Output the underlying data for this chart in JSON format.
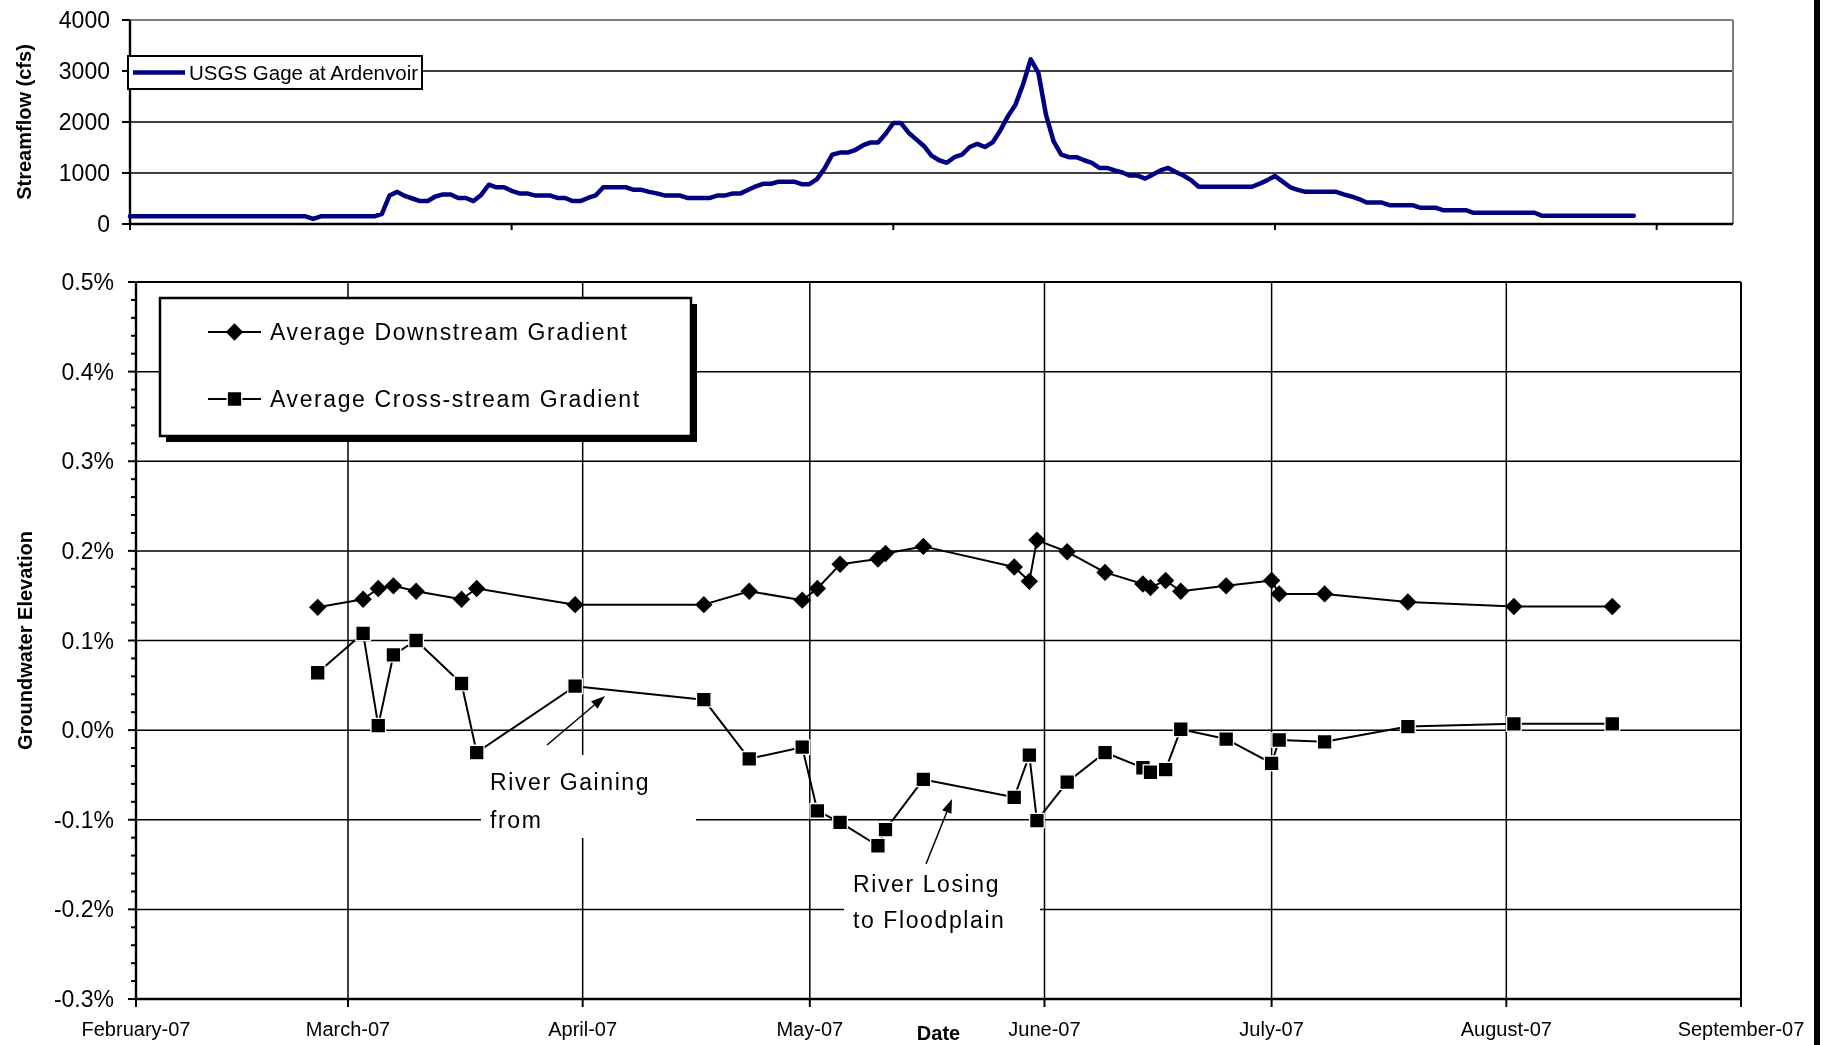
{
  "chart_data": [
    {
      "type": "line",
      "ylabel": "Streamflow (cfs)",
      "categories": [
        null,
        null,
        null,
        null,
        null,
        null,
        null,
        null,
        null,
        null,
        null,
        null,
        null,
        null,
        null,
        null,
        null,
        null,
        null,
        null,
        null,
        null,
        null,
        null,
        null,
        null,
        null,
        null,
        null,
        null,
        null,
        null,
        null,
        null,
        null,
        null,
        null,
        null,
        null,
        null,
        null,
        null,
        null,
        null,
        null,
        null,
        null,
        null,
        null,
        null,
        null,
        null,
        null,
        null,
        null,
        null,
        null,
        null,
        null,
        null,
        null,
        null,
        null,
        null,
        null,
        null,
        null,
        null,
        null,
        null,
        null,
        null,
        null,
        null,
        null,
        null,
        null,
        null,
        null,
        null,
        null,
        null,
        null,
        null,
        null,
        null,
        null,
        null,
        null,
        null,
        null,
        null,
        null,
        null,
        null,
        null,
        null,
        null,
        null,
        null,
        null,
        null,
        null,
        null,
        null,
        null,
        null,
        null,
        null,
        null,
        null,
        null,
        null,
        null,
        null,
        null,
        null,
        null,
        null,
        null,
        null,
        null,
        null,
        null,
        null,
        null,
        null,
        null,
        null,
        null,
        null,
        null,
        null,
        null,
        null,
        null,
        null,
        null,
        null,
        null,
        null,
        null,
        null,
        null,
        null,
        null,
        null,
        null,
        null,
        null,
        null,
        null,
        null,
        null,
        null,
        null,
        null,
        null,
        null,
        null,
        null,
        null,
        null,
        null,
        null,
        null,
        null,
        null,
        null,
        null,
        null,
        null,
        null,
        null,
        null,
        null,
        null,
        null,
        null,
        null,
        null,
        null,
        null,
        null,
        null,
        null,
        null,
        null,
        null,
        null,
        null,
        null,
        null,
        null,
        null,
        null,
        null,
        null,
        null,
        null,
        null,
        null,
        null,
        null,
        null,
        null,
        null,
        null,
        null,
        null,
        null
      ],
      "series": [
        {
          "name": "USGS Gage at Ardenvoir",
          "color": "#000080",
          "values": [
            150,
            150,
            150,
            150,
            150,
            150,
            150,
            150,
            150,
            150,
            150,
            150,
            150,
            150,
            150,
            150,
            150,
            150,
            150,
            150,
            150,
            150,
            150,
            150,
            100,
            150,
            150,
            150,
            150,
            150,
            150,
            150,
            150,
            200,
            560,
            630,
            550,
            500,
            450,
            450,
            540,
            580,
            580,
            510,
            510,
            450,
            570,
            770,
            720,
            720,
            650,
            600,
            600,
            560,
            560,
            560,
            510,
            510,
            450,
            450,
            510,
            560,
            720,
            720,
            720,
            720,
            670,
            670,
            630,
            600,
            560,
            560,
            560,
            510,
            510,
            510,
            510,
            560,
            560,
            600,
            600,
            670,
            740,
            790,
            790,
            830,
            830,
            830,
            780,
            780,
            880,
            1090,
            1360,
            1400,
            1400,
            1450,
            1540,
            1600,
            1600,
            1770,
            1980,
            1980,
            1790,
            1660,
            1530,
            1340,
            1250,
            1200,
            1310,
            1360,
            1510,
            1570,
            1510,
            1600,
            1830,
            2110,
            2340,
            2740,
            3230,
            2970,
            2140,
            1620,
            1360,
            1310,
            1310,
            1250,
            1200,
            1100,
            1100,
            1050,
            1010,
            950,
            950,
            890,
            970,
            1050,
            1100,
            1020,
            950,
            860,
            730,
            730,
            730,
            730,
            730,
            730,
            730,
            730,
            790,
            860,
            940,
            830,
            720,
            670,
            630,
            630,
            630,
            630,
            630,
            580,
            540,
            490,
            420,
            420,
            420,
            370,
            370,
            370,
            370,
            320,
            320,
            320,
            270,
            270,
            270,
            270,
            220,
            220,
            220,
            220,
            220,
            220,
            220,
            220,
            220,
            160,
            160,
            160,
            160,
            160,
            160,
            160,
            160,
            160,
            160,
            160,
            160,
            160,
            null,
            null,
            null,
            null,
            null,
            null,
            null,
            null,
            null,
            null,
            null,
            null,
            null
          ]
        }
      ],
      "ylim": [
        0,
        4000
      ],
      "yticks": [
        0,
        1000,
        2000,
        3000,
        4000
      ],
      "grid": "y",
      "legend": "top left"
    },
    {
      "type": "line",
      "xlabel": "Date",
      "ylabel": "Groundwater Elevation",
      "x": [
        "2007-02-25",
        "2007-03-03",
        "2007-03-05",
        "2007-03-07",
        "2007-03-10",
        "2007-03-16",
        "2007-03-18",
        "2007-03-31",
        "2007-04-17",
        "2007-04-23",
        "2007-04-30",
        "2007-05-02",
        "2007-05-05",
        "2007-05-10",
        "2007-05-11",
        "2007-05-16",
        "2007-05-28",
        "2007-05-30",
        "2007-05-31",
        "2007-06-04",
        "2007-06-09",
        "2007-06-14",
        "2007-06-15",
        "2007-06-17",
        "2007-06-19",
        "2007-06-25",
        "2007-07-01",
        "2007-07-02",
        "2007-07-08",
        "2007-07-19",
        "2007-08-02",
        "2007-08-15"
      ],
      "series": [
        {
          "name": "Average Downstream Gradient",
          "color": "#000000",
          "marker": "diamond",
          "values": [
            0.137,
            0.146,
            0.158,
            0.161,
            0.155,
            0.146,
            0.158,
            0.14,
            0.14,
            0.155,
            0.145,
            0.158,
            0.185,
            0.191,
            0.197,
            0.205,
            0.182,
            0.166,
            0.212,
            0.199,
            0.176,
            0.163,
            0.159,
            0.167,
            0.155,
            0.161,
            0.167,
            0.152,
            0.152,
            0.143,
            0.138,
            0.138
          ]
        },
        {
          "name": "Average Cross-stream Gradient",
          "color": "#000000",
          "marker": "square",
          "values": [
            0.064,
            0.108,
            0.005,
            0.084,
            0.1,
            0.052,
            -0.025,
            0.049,
            0.034,
            -0.032,
            -0.019,
            -0.09,
            -0.103,
            -0.129,
            -0.111,
            -0.055,
            -0.075,
            -0.028,
            -0.101,
            -0.058,
            -0.025,
            -0.042,
            -0.047,
            -0.044,
            0.001,
            -0.01,
            -0.037,
            -0.011,
            -0.013,
            0.004,
            0.007,
            0.007
          ]
        }
      ],
      "xlim": [
        "2007-02-01",
        "2007-09-01"
      ],
      "xticks": [
        {
          "value": "2007-02-01",
          "label": "February-07"
        },
        {
          "value": "2007-03-01",
          "label": "March-07"
        },
        {
          "value": "2007-04-01",
          "label": "April-07"
        },
        {
          "value": "2007-05-01",
          "label": "May-07"
        },
        {
          "value": "2007-06-01",
          "label": "June-07"
        },
        {
          "value": "2007-07-01",
          "label": "July-07"
        },
        {
          "value": "2007-08-01",
          "label": "August-07"
        },
        {
          "value": "2007-09-01",
          "label": "September-07"
        }
      ],
      "ylim": [
        -0.3,
        0.5
      ],
      "yticks": [
        {
          "value": -0.3,
          "label": "-0.3%"
        },
        {
          "value": -0.28,
          "label": null
        },
        {
          "value": -0.26,
          "label": null
        },
        {
          "value": -0.24,
          "label": null
        },
        {
          "value": -0.22,
          "label": null
        },
        {
          "value": -0.2,
          "label": "-0.2%"
        },
        {
          "value": -0.18,
          "label": null
        },
        {
          "value": -0.16,
          "label": null
        },
        {
          "value": -0.14,
          "label": null
        },
        {
          "value": -0.12,
          "label": null
        },
        {
          "value": -0.1,
          "label": "-0.1%"
        },
        {
          "value": -0.08,
          "label": null
        },
        {
          "value": -0.06,
          "label": null
        },
        {
          "value": -0.04,
          "label": null
        },
        {
          "value": -0.02,
          "label": null
        },
        {
          "value": 0,
          "label": "0.0%"
        },
        {
          "value": 0.02,
          "label": null
        },
        {
          "value": 0.04,
          "label": null
        },
        {
          "value": 0.06,
          "label": null
        },
        {
          "value": 0.08,
          "label": null
        },
        {
          "value": 0.1,
          "label": "0.1%"
        },
        {
          "value": 0.12,
          "label": null
        },
        {
          "value": 0.14,
          "label": null
        },
        {
          "value": 0.16,
          "label": null
        },
        {
          "value": 0.18,
          "label": null
        },
        {
          "value": 0.2,
          "label": "0.2%"
        },
        {
          "value": 0.22,
          "label": null
        },
        {
          "value": 0.24,
          "label": null
        },
        {
          "value": 0.26,
          "label": null
        },
        {
          "value": 0.28,
          "label": null
        },
        {
          "value": 0.3,
          "label": "0.3%"
        },
        {
          "value": 0.32,
          "label": null
        },
        {
          "value": 0.34,
          "label": null
        },
        {
          "value": 0.36,
          "label": null
        },
        {
          "value": 0.38,
          "label": null
        },
        {
          "value": 0.4,
          "label": "0.4%"
        },
        {
          "value": 0.42,
          "label": null
        },
        {
          "value": 0.44,
          "label": null
        },
        {
          "value": 0.46,
          "label": null
        },
        {
          "value": 0.48,
          "label": null
        },
        {
          "value": 0.5,
          "label": "0.5%"
        }
      ],
      "grid": true,
      "legend": "top left",
      "annotations": [
        "River Gaining\nfrom",
        "River Losing\nto Floodplain"
      ]
    }
  ]
}
